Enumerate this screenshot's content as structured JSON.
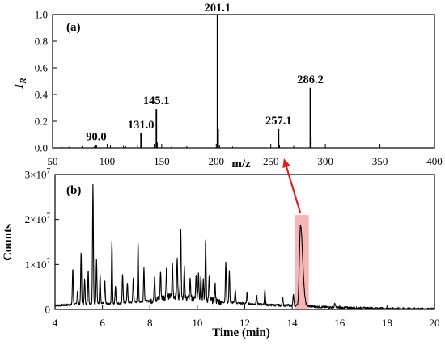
{
  "chart_data": [
    {
      "type": "bar",
      "panel_label": "(a)",
      "xlabel": "m/z",
      "ylabel": "I",
      "ylabel_sub": "R",
      "xlim": [
        50,
        400
      ],
      "ylim": [
        0,
        1.0
      ],
      "xticks": [
        "50",
        "100",
        "150",
        "200",
        "250",
        "300",
        "350",
        "400"
      ],
      "yticks": [
        "0.0",
        "0.2",
        "0.4",
        "0.6",
        "0.8",
        "1.0"
      ],
      "peaks": [
        {
          "mz": 90.0,
          "intensity": 0.02,
          "label": "90.0"
        },
        {
          "mz": 131.0,
          "intensity": 0.11,
          "label": "131.0"
        },
        {
          "mz": 145.1,
          "intensity": 0.29,
          "label": "145.1"
        },
        {
          "mz": 201.1,
          "intensity": 1.0,
          "label": "201.1"
        },
        {
          "mz": 257.1,
          "intensity": 0.14,
          "label": "257.1"
        },
        {
          "mz": 286.2,
          "intensity": 0.45,
          "label": "286.2"
        }
      ],
      "minor_peaks": [
        {
          "mz": 58,
          "intensity": 0.01
        },
        {
          "mz": 65,
          "intensity": 0.008
        },
        {
          "mz": 77,
          "intensity": 0.012
        },
        {
          "mz": 88,
          "intensity": 0.01
        },
        {
          "mz": 103,
          "intensity": 0.018
        },
        {
          "mz": 115,
          "intensity": 0.015
        },
        {
          "mz": 117,
          "intensity": 0.012
        },
        {
          "mz": 128,
          "intensity": 0.02
        },
        {
          "mz": 143,
          "intensity": 0.03
        },
        {
          "mz": 146,
          "intensity": 0.04
        },
        {
          "mz": 159,
          "intensity": 0.01
        },
        {
          "mz": 173,
          "intensity": 0.012
        },
        {
          "mz": 202,
          "intensity": 0.14
        },
        {
          "mz": 203,
          "intensity": 0.02
        },
        {
          "mz": 215,
          "intensity": 0.01
        },
        {
          "mz": 229,
          "intensity": 0.008
        },
        {
          "mz": 258,
          "intensity": 0.02
        },
        {
          "mz": 271,
          "intensity": 0.015
        },
        {
          "mz": 287,
          "intensity": 0.08
        }
      ]
    },
    {
      "type": "line",
      "panel_label": "(b)",
      "xlabel": "Time (min)",
      "ylabel": "Counts",
      "xlim": [
        4,
        20
      ],
      "ylim": [
        0,
        30000000
      ],
      "xticks": [
        "4",
        "6",
        "8",
        "10",
        "12",
        "14",
        "16",
        "18",
        "20"
      ],
      "yticks": [
        {
          "mantissa": "0",
          "exp": ""
        },
        {
          "mantissa": "1×10",
          "exp": "7"
        },
        {
          "mantissa": "2×10",
          "exp": "7"
        },
        {
          "mantissa": "3×10",
          "exp": "7"
        }
      ],
      "highlight_xrange": [
        14.1,
        14.7
      ],
      "highlight_color": "#f4a9a9",
      "arrow_color": "#e02020",
      "baseline": [
        [
          4.0,
          0.9
        ],
        [
          4.5,
          1.0
        ],
        [
          5.0,
          1.2
        ],
        [
          5.5,
          1.3
        ],
        [
          6.0,
          1.3
        ],
        [
          6.5,
          1.3
        ],
        [
          7.0,
          1.5
        ],
        [
          7.5,
          1.7
        ],
        [
          8.0,
          1.9
        ],
        [
          8.5,
          2.6
        ],
        [
          9.0,
          3.0
        ],
        [
          9.5,
          2.6
        ],
        [
          10.0,
          2.4
        ],
        [
          10.5,
          2.1
        ],
        [
          11.0,
          1.7
        ],
        [
          11.5,
          1.5
        ],
        [
          12.0,
          1.3
        ],
        [
          12.5,
          1.2
        ],
        [
          13.0,
          1.0
        ],
        [
          13.5,
          0.9
        ],
        [
          14.0,
          0.9
        ],
        [
          14.5,
          0.8
        ],
        [
          15.0,
          0.6
        ],
        [
          15.5,
          0.5
        ],
        [
          16.0,
          0.4
        ],
        [
          17.0,
          0.3
        ],
        [
          18.0,
          0.2
        ],
        [
          19.0,
          0.15
        ],
        [
          20.0,
          0.1
        ]
      ],
      "peaks": [
        {
          "t": 4.75,
          "h": 8.0
        },
        {
          "t": 4.95,
          "h": 3.0
        },
        {
          "t": 5.1,
          "h": 11.5
        },
        {
          "t": 5.25,
          "h": 5.5
        },
        {
          "t": 5.4,
          "h": 7.5
        },
        {
          "t": 5.6,
          "h": 26.5
        },
        {
          "t": 5.75,
          "h": 10.0
        },
        {
          "t": 5.9,
          "h": 6.5
        },
        {
          "t": 6.1,
          "h": 5.0
        },
        {
          "t": 6.4,
          "h": 14.0
        },
        {
          "t": 6.55,
          "h": 4.0
        },
        {
          "t": 6.85,
          "h": 6.5
        },
        {
          "t": 7.05,
          "h": 4.5
        },
        {
          "t": 7.3,
          "h": 5.5
        },
        {
          "t": 7.5,
          "h": 13.5
        },
        {
          "t": 7.75,
          "h": 7.5
        },
        {
          "t": 8.2,
          "h": 5.5
        },
        {
          "t": 8.45,
          "h": 6.0
        },
        {
          "t": 8.7,
          "h": 6.5
        },
        {
          "t": 8.95,
          "h": 7.0
        },
        {
          "t": 9.15,
          "h": 8.5
        },
        {
          "t": 9.3,
          "h": 15.5
        },
        {
          "t": 9.45,
          "h": 7.0
        },
        {
          "t": 9.7,
          "h": 4.5
        },
        {
          "t": 9.95,
          "h": 5.0
        },
        {
          "t": 10.05,
          "h": 6.0
        },
        {
          "t": 10.15,
          "h": 5.5
        },
        {
          "t": 10.25,
          "h": 4.5
        },
        {
          "t": 10.35,
          "h": 13.5
        },
        {
          "t": 10.5,
          "h": 5.0
        },
        {
          "t": 10.75,
          "h": 3.5
        },
        {
          "t": 11.2,
          "h": 9.0
        },
        {
          "t": 11.35,
          "h": 7.0
        },
        {
          "t": 11.6,
          "h": 3.0
        },
        {
          "t": 12.1,
          "h": 2.5
        },
        {
          "t": 12.5,
          "h": 2.0
        },
        {
          "t": 12.85,
          "h": 3.5
        },
        {
          "t": 13.6,
          "h": 2.0
        },
        {
          "t": 14.05,
          "h": 2.5
        },
        {
          "t": 14.35,
          "h": 18.0
        },
        {
          "t": 15.8,
          "h": 1.0
        }
      ]
    }
  ]
}
